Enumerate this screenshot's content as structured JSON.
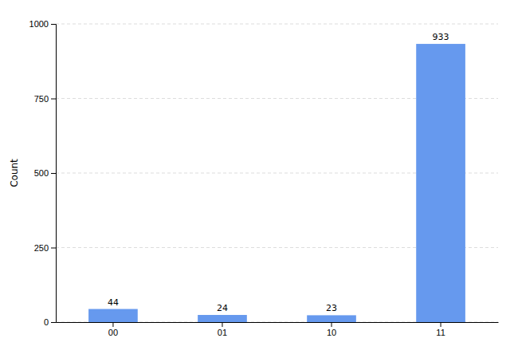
{
  "chart_data": {
    "type": "bar",
    "ylabel": "Count",
    "categories": [
      "00",
      "01",
      "10",
      "11"
    ],
    "values": [
      44,
      24,
      23,
      933
    ],
    "color": "#6699ee",
    "ylim": [
      0,
      1000
    ],
    "yticks": [
      0,
      250,
      500,
      750,
      1000
    ],
    "grid": true,
    "data_labels": true
  }
}
